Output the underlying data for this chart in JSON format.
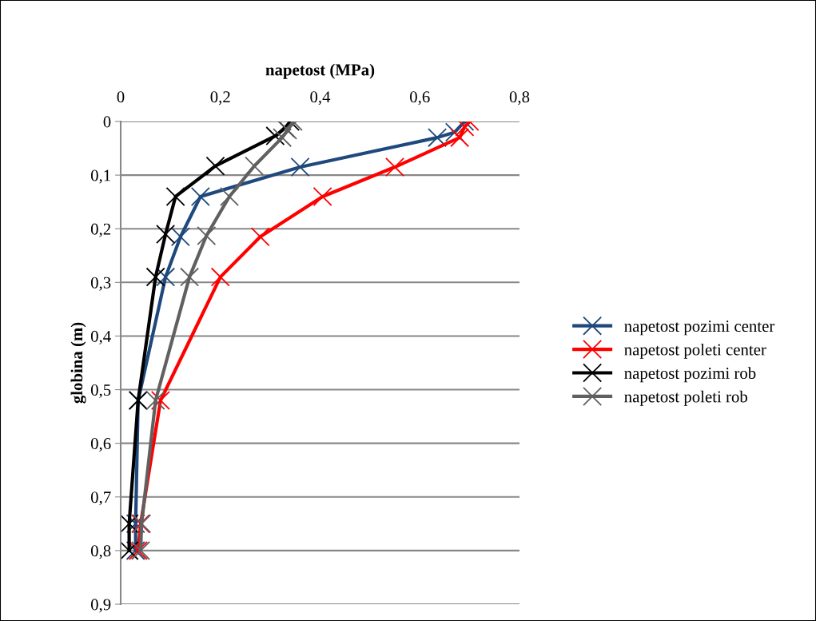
{
  "chart_data": {
    "type": "line",
    "xlabel": "napetost (MPa)",
    "ylabel": "globina (m)",
    "xlim": [
      0,
      0.8
    ],
    "xticks": [
      0,
      {
        "value": 0.2,
        "label": "0,2"
      },
      {
        "value": 0.4,
        "label": "0,4"
      },
      {
        "value": 0.6,
        "label": "0,6"
      },
      {
        "value": 0.8,
        "label": "0,8"
      }
    ],
    "ylim": [
      0.9,
      0
    ],
    "yticks": [
      0,
      {
        "value": 0.1,
        "label": "0,1"
      },
      {
        "value": 0.2,
        "label": "0,2"
      },
      {
        "value": 0.3,
        "label": "0,3"
      },
      {
        "value": 0.4,
        "label": "0,4"
      },
      {
        "value": 0.5,
        "label": "0,5"
      },
      {
        "value": 0.6,
        "label": "0,6"
      },
      {
        "value": 0.7,
        "label": "0,7"
      },
      {
        "value": 0.8,
        "label": "0,8"
      },
      {
        "value": 0.9,
        "label": "0,9"
      }
    ],
    "grid": "y",
    "legend": "right",
    "marker": "cross",
    "line_style": "solid",
    "series": [
      {
        "name": "napetost pozimi center",
        "color": "#1f497d",
        "x": [
          0.69,
          0.67,
          0.635,
          0.36,
          0.16,
          0.12,
          0.09,
          0.035,
          0.03,
          0.03
        ],
        "values": [
          0,
          0.02,
          0.03,
          0.085,
          0.14,
          0.215,
          0.29,
          0.52,
          0.75,
          0.8
        ]
      },
      {
        "name": "napetost poleti center",
        "color": "#ff0000",
        "x": [
          0.7,
          0.69,
          0.68,
          0.55,
          0.405,
          0.28,
          0.2,
          0.08,
          0.04,
          0.035
        ],
        "values": [
          0,
          0.01,
          0.03,
          0.085,
          0.14,
          0.215,
          0.29,
          0.52,
          0.75,
          0.8
        ]
      },
      {
        "name": "napetost pozimi rob",
        "color": "#000000",
        "x": [
          0.34,
          0.33,
          0.31,
          0.19,
          0.11,
          0.09,
          0.07,
          0.035,
          0.017,
          0.017
        ],
        "values": [
          0,
          0.012,
          0.027,
          0.083,
          0.14,
          0.21,
          0.29,
          0.52,
          0.75,
          0.8
        ]
      },
      {
        "name": "napetost poleti rob",
        "color": "#606060",
        "x": [
          0.346,
          0.335,
          0.324,
          0.268,
          0.218,
          0.172,
          0.138,
          0.07,
          0.042,
          0.04
        ],
        "values": [
          0,
          0.016,
          0.03,
          0.083,
          0.14,
          0.213,
          0.29,
          0.52,
          0.75,
          0.8
        ]
      }
    ]
  }
}
